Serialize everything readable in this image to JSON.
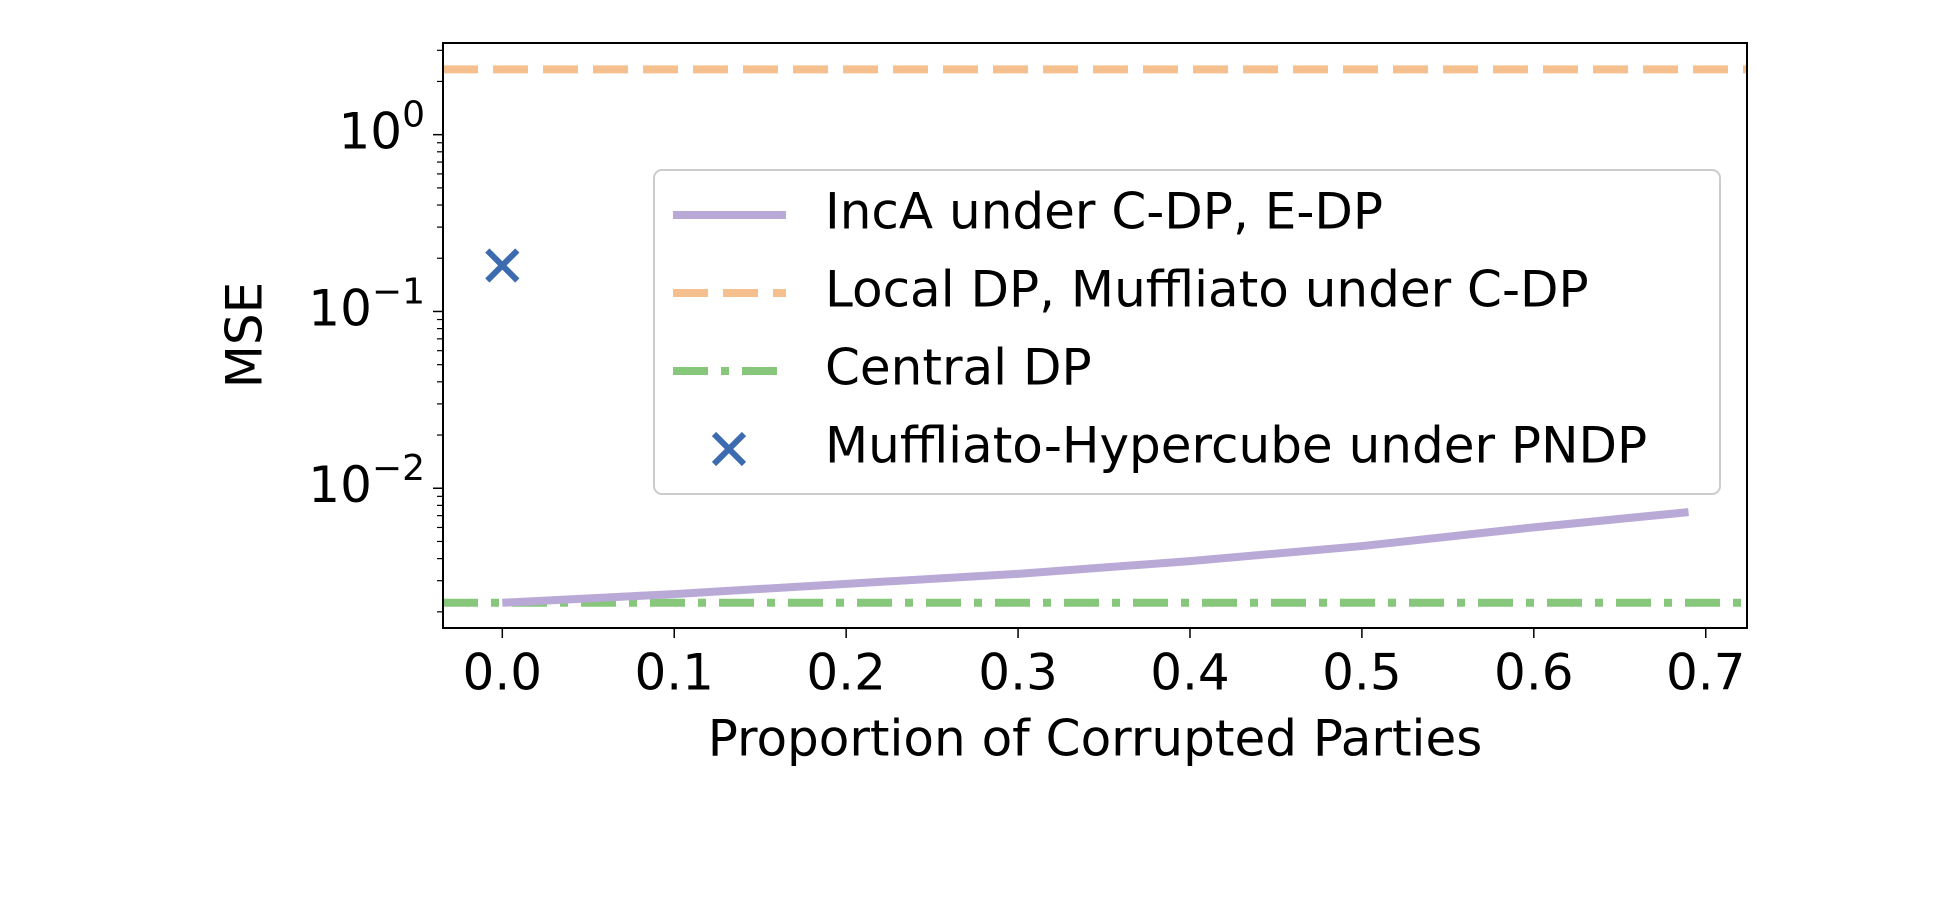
{
  "chart_data": {
    "type": "line",
    "xlabel": "Proportion of Corrupted Parties",
    "ylabel": "MSE",
    "yscale": "log",
    "xlim": [
      -0.0345,
      0.724
    ],
    "ylim": [
      0.00162,
      3.3
    ],
    "xticks": [
      {
        "value": 0,
        "label": "0.0"
      },
      0.1,
      0.2,
      0.3,
      0.4,
      0.5,
      0.6,
      0.7
    ],
    "yticks": [
      {
        "value": 0.01,
        "label": "10⁻²"
      },
      {
        "value": 0.1,
        "label": "10⁻¹"
      },
      {
        "value": 1,
        "label": "10⁰"
      }
    ],
    "minor_ticks": true,
    "grid": false,
    "legend": "center right",
    "series": [
      {
        "name": "IncA under C-DP, E-DP",
        "color": "#b9a9d6",
        "style": "solid",
        "kind": "line",
        "x": [
          0,
          0.1,
          0.2,
          0.3,
          0.4,
          0.5,
          0.6,
          0.69
        ],
        "values": [
          0.00225,
          0.00252,
          0.00288,
          0.00328,
          0.00387,
          0.00471,
          0.00601,
          0.00733
        ]
      },
      {
        "name": "Local DP, Muffliato under C-DP",
        "color": "#f6c08e",
        "style": "dashed",
        "kind": "hline",
        "values": [
          2.34
        ]
      },
      {
        "name": "Central DP",
        "color": "#86c77c",
        "style": "dashdot",
        "kind": "hline",
        "values": [
          0.00225
        ]
      },
      {
        "name": "Muffliato-Hypercube under PNDP",
        "color": "#3d6bb0",
        "style": "solid",
        "kind": "marker",
        "x": [
          0
        ],
        "values": [
          0.182
        ]
      }
    ]
  }
}
